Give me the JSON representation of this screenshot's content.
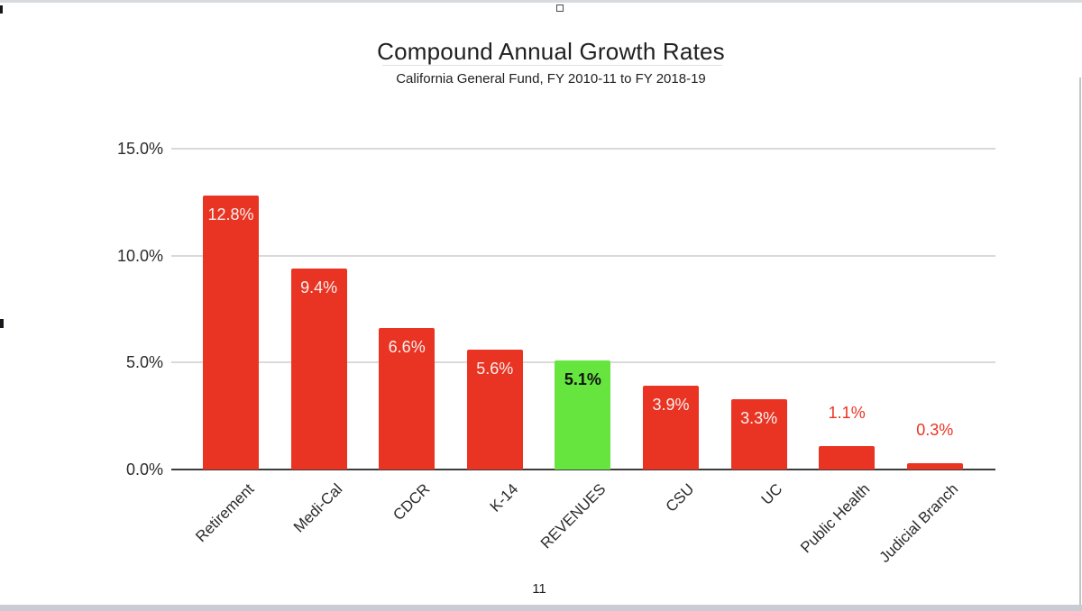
{
  "chart_data": {
    "type": "bar",
    "title": "Compound Annual Growth Rates",
    "subtitle": "California General Fund, FY 2010-11 to FY 2018-19",
    "categories": [
      "Retirement",
      "Medi-Cal",
      "CDCR",
      "K-14",
      "REVENUES",
      "CSU",
      "UC",
      "Public Health",
      "Judicial Branch"
    ],
    "values": [
      12.8,
      9.4,
      6.6,
      5.6,
      5.1,
      3.9,
      3.3,
      1.1,
      0.3
    ],
    "value_labels": [
      "12.8%",
      "9.4%",
      "6.6%",
      "5.6%",
      "5.1%",
      "3.9%",
      "3.3%",
      "1.1%",
      "0.3%"
    ],
    "highlight_index": 4,
    "colors": {
      "bar": "#ea3423",
      "highlight_bar": "#66e53e",
      "inside_label": "#f6f1ef",
      "highlight_label": "#121212",
      "outside_label": "#ea3423",
      "gridline": "#d9d9d9",
      "axis_line": "#3c3c3c"
    },
    "ylim": [
      0,
      15
    ],
    "yticks": [
      {
        "value": 0,
        "label": "0.0%"
      },
      {
        "value": 5,
        "label": "5.0%"
      },
      {
        "value": 10,
        "label": "10.0%"
      },
      {
        "value": 15,
        "label": "15.0%"
      }
    ],
    "grid": true,
    "legend": "none",
    "xlabel": "",
    "ylabel": ""
  },
  "page": {
    "number": "11"
  }
}
